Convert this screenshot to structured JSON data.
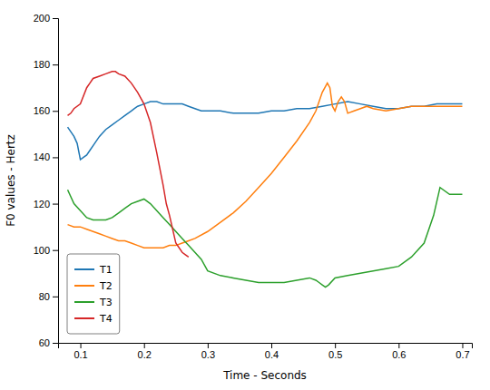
{
  "chart_data": {
    "type": "line",
    "xlabel": "Time - Seconds",
    "ylabel": "F0 values - Hertz",
    "xlim": [
      0.065,
      0.715
    ],
    "ylim": [
      60,
      200
    ],
    "xticks": [
      0.1,
      0.2,
      0.3,
      0.4,
      0.5,
      0.6,
      0.7
    ],
    "yticks": [
      60,
      80,
      100,
      120,
      140,
      160,
      180,
      200
    ],
    "grid": false,
    "legend": "lower left",
    "series": [
      {
        "name": "T1",
        "color": "#1f77b4",
        "x": [
          0.08,
          0.09,
          0.095,
          0.1,
          0.105,
          0.11,
          0.115,
          0.12,
          0.13,
          0.14,
          0.15,
          0.16,
          0.17,
          0.18,
          0.185,
          0.19,
          0.2,
          0.21,
          0.22,
          0.23,
          0.24,
          0.25,
          0.26,
          0.27,
          0.28,
          0.29,
          0.3,
          0.32,
          0.34,
          0.36,
          0.38,
          0.4,
          0.42,
          0.44,
          0.46,
          0.48,
          0.5,
          0.52,
          0.54,
          0.56,
          0.58,
          0.6,
          0.62,
          0.64,
          0.66,
          0.68,
          0.7
        ],
        "values": [
          153,
          149,
          146,
          139,
          140,
          141,
          143,
          145,
          149,
          152,
          154,
          156,
          158,
          160,
          161,
          162,
          163,
          164,
          164,
          163,
          163,
          163,
          163,
          162,
          161,
          160,
          160,
          160,
          159,
          159,
          159,
          160,
          160,
          161,
          161,
          162,
          163,
          164,
          163,
          162,
          161,
          161,
          162,
          162,
          163,
          163,
          163
        ]
      },
      {
        "name": "T2",
        "color": "#ff7f0e",
        "x": [
          0.08,
          0.09,
          0.1,
          0.11,
          0.12,
          0.13,
          0.14,
          0.15,
          0.16,
          0.17,
          0.18,
          0.19,
          0.2,
          0.21,
          0.22,
          0.23,
          0.24,
          0.25,
          0.26,
          0.27,
          0.28,
          0.3,
          0.32,
          0.34,
          0.36,
          0.38,
          0.4,
          0.42,
          0.44,
          0.46,
          0.47,
          0.48,
          0.488,
          0.492,
          0.496,
          0.5,
          0.505,
          0.51,
          0.515,
          0.52,
          0.53,
          0.54,
          0.55,
          0.56,
          0.58,
          0.6,
          0.62,
          0.64,
          0.66,
          0.68,
          0.7
        ],
        "values": [
          111,
          110,
          110,
          109,
          108,
          107,
          106,
          105,
          104,
          104,
          103,
          102,
          101,
          101,
          101,
          101,
          102,
          102,
          103,
          104,
          105,
          108,
          112,
          116,
          121,
          127,
          133,
          140,
          147,
          155,
          160,
          168,
          172,
          170,
          162,
          160,
          164,
          166,
          164,
          159,
          160,
          161,
          162,
          161,
          160,
          161,
          162,
          162,
          162,
          162,
          162
        ]
      },
      {
        "name": "T3",
        "color": "#2ca02c",
        "x": [
          0.08,
          0.09,
          0.1,
          0.11,
          0.12,
          0.13,
          0.14,
          0.15,
          0.16,
          0.17,
          0.18,
          0.19,
          0.2,
          0.21,
          0.22,
          0.23,
          0.24,
          0.25,
          0.26,
          0.27,
          0.28,
          0.29,
          0.3,
          0.32,
          0.34,
          0.36,
          0.38,
          0.4,
          0.42,
          0.44,
          0.46,
          0.47,
          0.475,
          0.48,
          0.485,
          0.49,
          0.5,
          0.52,
          0.54,
          0.56,
          0.58,
          0.6,
          0.62,
          0.64,
          0.655,
          0.665,
          0.68,
          0.7
        ],
        "values": [
          126,
          120,
          117,
          114,
          113,
          113,
          113,
          114,
          116,
          118,
          120,
          121,
          122,
          120,
          117,
          114,
          111,
          108,
          105,
          102,
          99,
          96,
          91,
          89,
          88,
          87,
          86,
          86,
          86,
          87,
          88,
          87,
          86,
          85,
          84,
          85,
          88,
          89,
          90,
          91,
          92,
          93,
          97,
          103,
          115,
          127,
          124,
          124
        ]
      },
      {
        "name": "T4",
        "color": "#d62728",
        "x": [
          0.08,
          0.085,
          0.09,
          0.1,
          0.11,
          0.115,
          0.12,
          0.13,
          0.14,
          0.15,
          0.155,
          0.16,
          0.17,
          0.18,
          0.19,
          0.2,
          0.21,
          0.22,
          0.23,
          0.235,
          0.24,
          0.25,
          0.26,
          0.265,
          0.27
        ],
        "values": [
          158,
          159,
          161,
          163,
          170,
          172,
          174,
          175,
          176,
          177,
          177,
          176,
          175,
          172,
          168,
          163,
          155,
          142,
          128,
          120,
          115,
          103,
          99,
          98,
          97
        ]
      }
    ]
  }
}
